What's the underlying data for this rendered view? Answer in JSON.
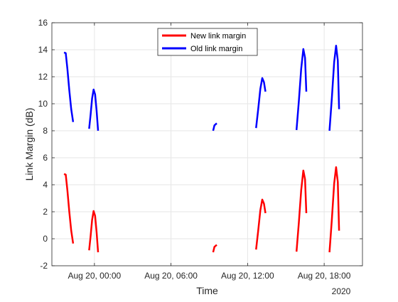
{
  "chart_data": {
    "type": "line",
    "xlabel": "Time",
    "ylabel": "Link Margin (dB)",
    "x_axis_secondary_label": "2020",
    "xlim": [
      "2020-08-19 20:40",
      "2020-08-20 21:00"
    ],
    "ylim": [
      -2,
      16
    ],
    "yticks": [
      -2,
      0,
      2,
      4,
      6,
      8,
      10,
      12,
      14,
      16
    ],
    "xticks": [
      {
        "t": "2020-08-20 00:00",
        "label": "Aug 20, 00:00"
      },
      {
        "t": "2020-08-20 06:00",
        "label": "Aug 20, 06:00"
      },
      {
        "t": "2020-08-20 12:00",
        "label": "Aug 20, 12:00"
      },
      {
        "t": "2020-08-20 18:00",
        "label": "Aug 20, 18:00"
      }
    ],
    "grid": true,
    "legend_position": "top-center",
    "series": [
      {
        "name": "New link margin",
        "color": "#ff0000",
        "segments": [
          [
            [
              "2020-08-19 21:37",
              4.8
            ],
            [
              "2020-08-19 21:45",
              4.75
            ],
            [
              "2020-08-19 21:53",
              3.6
            ],
            [
              "2020-08-19 22:02",
              2.0
            ],
            [
              "2020-08-19 22:11",
              0.6
            ],
            [
              "2020-08-19 22:20",
              -0.35
            ]
          ],
          [
            [
              "2020-08-19 23:35",
              -0.85
            ],
            [
              "2020-08-19 23:42",
              0.2
            ],
            [
              "2020-08-19 23:49",
              1.4
            ],
            [
              "2020-08-19 23:56",
              2.05
            ],
            [
              "2020-08-20 00:03",
              1.7
            ],
            [
              "2020-08-20 00:10",
              0.5
            ],
            [
              "2020-08-20 00:17",
              -1.0
            ]
          ],
          [
            [
              "2020-08-20 09:18",
              -1.0
            ],
            [
              "2020-08-20 09:24",
              -0.6
            ],
            [
              "2020-08-20 09:35",
              -0.45
            ]
          ],
          [
            [
              "2020-08-20 12:40",
              -0.8
            ],
            [
              "2020-08-20 12:50",
              0.6
            ],
            [
              "2020-08-20 13:00",
              2.1
            ],
            [
              "2020-08-20 13:09",
              2.9
            ],
            [
              "2020-08-20 13:17",
              2.6
            ],
            [
              "2020-08-20 13:24",
              1.9
            ]
          ],
          [
            [
              "2020-08-20 15:50",
              -0.95
            ],
            [
              "2020-08-20 16:01",
              1.2
            ],
            [
              "2020-08-20 16:12",
              3.6
            ],
            [
              "2020-08-20 16:22",
              5.05
            ],
            [
              "2020-08-20 16:30",
              4.4
            ],
            [
              "2020-08-20 16:36",
              1.9
            ]
          ],
          [
            [
              "2020-08-20 18:25",
              -1.0
            ],
            [
              "2020-08-20 18:36",
              1.4
            ],
            [
              "2020-08-20 18:47",
              4.1
            ],
            [
              "2020-08-20 18:56",
              5.3
            ],
            [
              "2020-08-20 19:04",
              4.2
            ],
            [
              "2020-08-20 19:10",
              0.6
            ]
          ]
        ]
      },
      {
        "name": "Old link margin",
        "color": "#0000ff",
        "segments": [
          [
            [
              "2020-08-19 21:37",
              13.8
            ],
            [
              "2020-08-19 21:45",
              13.75
            ],
            [
              "2020-08-19 21:53",
              12.6
            ],
            [
              "2020-08-19 22:02",
              11.0
            ],
            [
              "2020-08-19 22:11",
              9.6
            ],
            [
              "2020-08-19 22:20",
              8.65
            ]
          ],
          [
            [
              "2020-08-19 23:35",
              8.15
            ],
            [
              "2020-08-19 23:42",
              9.2
            ],
            [
              "2020-08-19 23:49",
              10.4
            ],
            [
              "2020-08-19 23:56",
              11.05
            ],
            [
              "2020-08-20 00:03",
              10.7
            ],
            [
              "2020-08-20 00:10",
              9.5
            ],
            [
              "2020-08-20 00:17",
              8.0
            ]
          ],
          [
            [
              "2020-08-20 09:18",
              8.0
            ],
            [
              "2020-08-20 09:24",
              8.4
            ],
            [
              "2020-08-20 09:35",
              8.55
            ]
          ],
          [
            [
              "2020-08-20 12:40",
              8.2
            ],
            [
              "2020-08-20 12:50",
              9.6
            ],
            [
              "2020-08-20 13:00",
              11.1
            ],
            [
              "2020-08-20 13:09",
              11.9
            ],
            [
              "2020-08-20 13:17",
              11.6
            ],
            [
              "2020-08-20 13:24",
              10.9
            ]
          ],
          [
            [
              "2020-08-20 15:50",
              8.05
            ],
            [
              "2020-08-20 16:01",
              10.2
            ],
            [
              "2020-08-20 16:12",
              12.6
            ],
            [
              "2020-08-20 16:22",
              14.05
            ],
            [
              "2020-08-20 16:30",
              13.4
            ],
            [
              "2020-08-20 16:36",
              10.9
            ]
          ],
          [
            [
              "2020-08-20 18:25",
              8.0
            ],
            [
              "2020-08-20 18:36",
              10.4
            ],
            [
              "2020-08-20 18:47",
              13.1
            ],
            [
              "2020-08-20 18:56",
              14.3
            ],
            [
              "2020-08-20 19:04",
              13.2
            ],
            [
              "2020-08-20 19:10",
              9.6
            ]
          ]
        ]
      }
    ]
  }
}
